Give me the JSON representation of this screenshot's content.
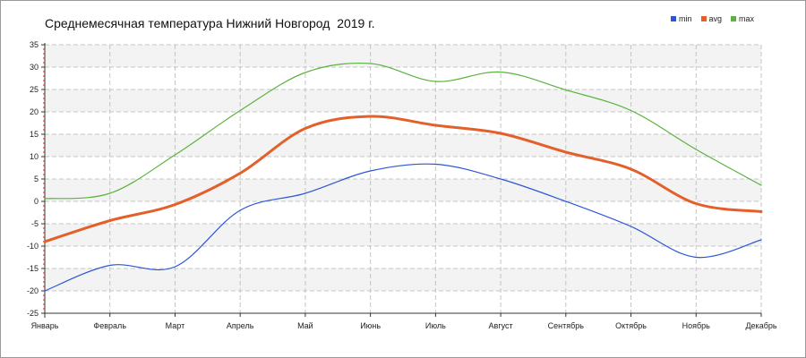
{
  "chart_data": {
    "type": "line",
    "title": "Среднемесячная температура Нижний Новгород  2019 г.",
    "xlabel": "",
    "ylabel": "",
    "categories": [
      "Январь",
      "Февраль",
      "Март",
      "Апрель",
      "Май",
      "Июнь",
      "Июль",
      "Август",
      "Сентябрь",
      "Октябрь",
      "Ноябрь",
      "Декабрь"
    ],
    "ylim": [
      -25,
      35
    ],
    "yticks": [
      35,
      30,
      25,
      20,
      15,
      10,
      5,
      0,
      -5,
      -10,
      -15,
      -20,
      -25
    ],
    "grid": true,
    "legend_position": "top-right",
    "series": [
      {
        "name": "min",
        "color": "#2b55d8",
        "values": [
          -20,
          -14.3,
          -14.6,
          -2,
          1.8,
          6.8,
          8.3,
          5,
          0,
          -5.6,
          -12.5,
          -8.6
        ]
      },
      {
        "name": "avg",
        "color": "#e4602a",
        "values": [
          -9,
          -4.3,
          -0.7,
          6.3,
          16.3,
          19,
          17,
          15.2,
          11,
          7.2,
          -0.5,
          -2.3
        ]
      },
      {
        "name": "max",
        "color": "#5ab33e",
        "values": [
          0.6,
          1.8,
          10.4,
          20.3,
          28.8,
          30.8,
          26.8,
          28.9,
          24.9,
          20.3,
          11.6,
          3.6
        ]
      }
    ]
  }
}
